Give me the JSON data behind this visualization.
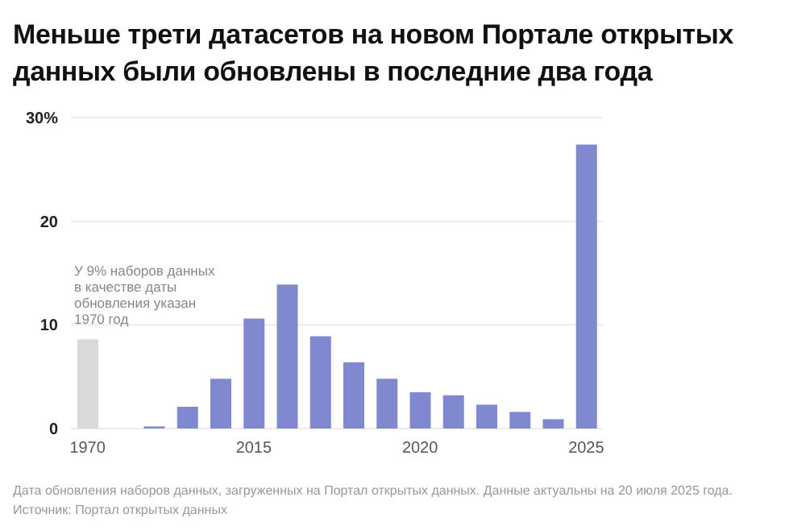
{
  "chart_data": {
    "type": "bar",
    "title": "Меньше трети датасетов на новом Портале открытых данных были обновлены в последние два года",
    "categories": [
      "1970",
      null,
      null,
      null,
      null,
      "2015",
      null,
      null,
      null,
      null,
      "2020",
      null,
      null,
      null,
      null,
      "2025"
    ],
    "values": [
      8.6,
      0,
      0.2,
      2.1,
      4.8,
      10.6,
      13.9,
      8.9,
      6.4,
      4.8,
      3.5,
      3.2,
      2.3,
      1.6,
      0.9,
      27.4
    ],
    "colors": [
      "#d9d9d9",
      "#8088d0",
      "#8088d0",
      "#8088d0",
      "#8088d0",
      "#8088d0",
      "#8088d0",
      "#8088d0",
      "#8088d0",
      "#8088d0",
      "#8088d0",
      "#8088d0",
      "#8088d0",
      "#8088d0",
      "#8088d0",
      "#8088d0"
    ],
    "ylim": [
      0,
      30
    ],
    "yticks": [
      0,
      10,
      20,
      {
        "value": 30,
        "label": "30%"
      }
    ],
    "grid": "y",
    "annotations": [
      "У 9% наборов данных в качестве даты обновления указан 1970 год",
      "Дата обновления наборов данных, загруженных на Портал открытых данных. Данные актуальны на 20 июля 2025 года.",
      "Источник: Портал открытых данных"
    ]
  }
}
